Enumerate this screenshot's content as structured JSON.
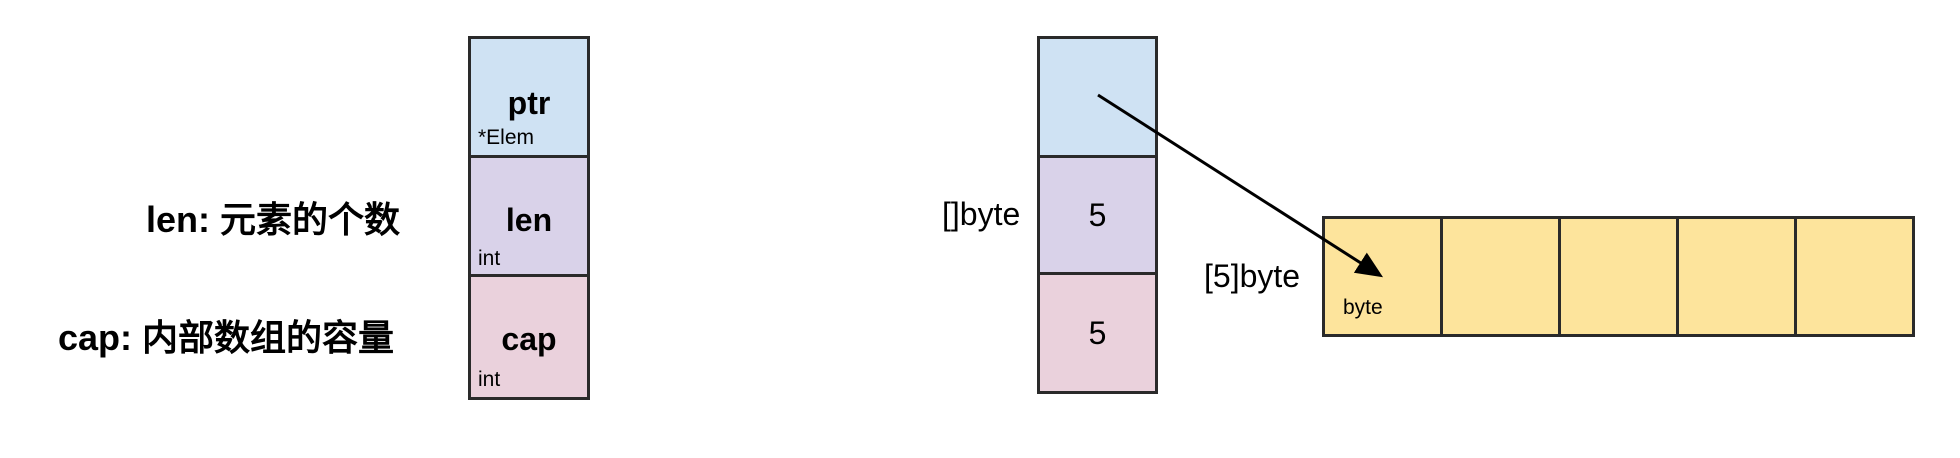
{
  "slice_header": {
    "ptr": {
      "name": "ptr",
      "type": "*Elem"
    },
    "len": {
      "name": "len",
      "type": "int"
    },
    "cap": {
      "name": "cap",
      "type": "int"
    }
  },
  "descriptions": {
    "len": "len: 元素的个数",
    "cap": "cap: 内部数组的容量"
  },
  "example_slice": {
    "type_label": "[]byte",
    "len_value": "5",
    "cap_value": "5"
  },
  "backing_array": {
    "type_label": "[5]byte",
    "element_type": "byte",
    "element_count": 5
  },
  "colors": {
    "ptr_cell": "#cfe2f3",
    "len_cell": "#d9d2e9",
    "cap_cell": "#ead1dc",
    "array_cell": "#fde49c",
    "border": "#2a2a2a"
  }
}
